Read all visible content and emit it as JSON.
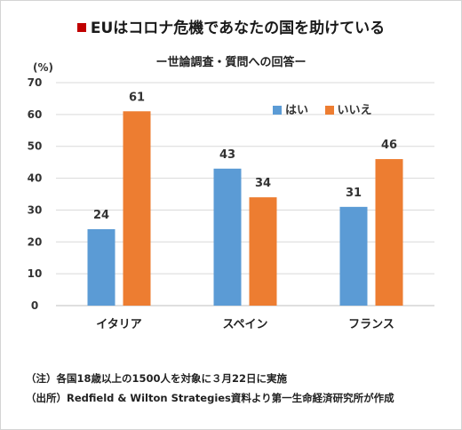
{
  "header": {
    "title": "EUはコロナ危機であなたの国を助けている",
    "subtitle": "ー世論調査・質問への回答ー"
  },
  "notes": [
    "（注）各国18歳以上の1500人を対象に３月22日に実施",
    "（出所）Redfield & Wilton Strategies資料より第一生命経済研究所が作成"
  ],
  "chart_data": {
    "type": "bar",
    "unit_label": "(%)",
    "categories": [
      "イタリア",
      "スペイン",
      "フランス"
    ],
    "series": [
      {
        "name": "はい",
        "values": [
          24,
          43,
          31
        ],
        "color": "#5b9bd5"
      },
      {
        "name": "いいえ",
        "values": [
          61,
          34,
          46
        ],
        "color": "#ed7d31"
      }
    ],
    "ylim": [
      0,
      70
    ],
    "yticks": [
      0,
      10,
      20,
      30,
      40,
      50,
      60,
      70
    ],
    "grid": true,
    "legend_position": "top-right",
    "data_labels": true
  }
}
